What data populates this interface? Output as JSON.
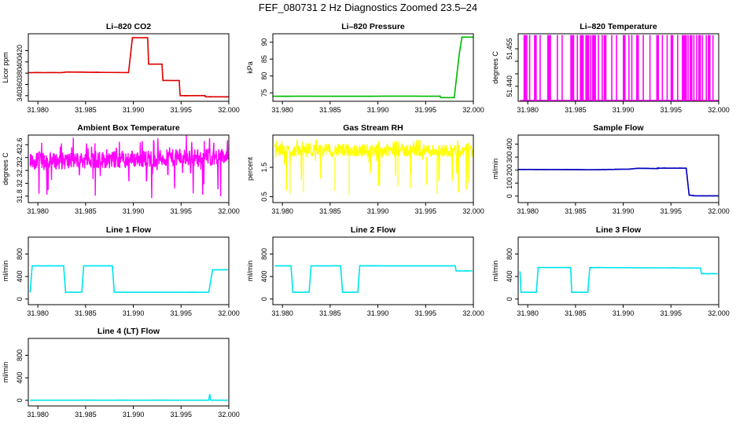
{
  "title": "FEF_080731  2 Hz Diagnostics Zoomed 23.5–24",
  "colors": {
    "red": "#e00000",
    "green": "#00bb00",
    "magenta": "#ff00ff",
    "yellow": "#ffff00",
    "blue": "#0000bb",
    "cyan": "#00e5ee"
  },
  "chart_data": [
    {
      "type": "line",
      "title": "Li–820 CO2",
      "ylabel": "Licor ppm",
      "color": "red",
      "xlim": [
        31.979,
        32.0
      ],
      "ylim": [
        330,
        450
      ],
      "xticks": [
        "31.980",
        "31.985",
        "31.990",
        "31.995",
        "32.000"
      ],
      "yticks": [
        340,
        360,
        380,
        400,
        420
      ],
      "series": [
        {
          "x": [
            31.979,
            31.9825,
            31.983,
            31.9895,
            31.9899,
            31.9915,
            31.9916,
            31.993,
            31.9931,
            31.9948,
            31.9949,
            31.9975,
            31.9976,
            32.0
          ],
          "y": [
            381,
            381,
            382,
            381,
            443,
            443,
            396,
            396,
            367,
            367,
            340,
            340,
            338,
            338
          ]
        }
      ]
    },
    {
      "type": "line",
      "title": "Li–820 Pressure",
      "ylabel": "kPa",
      "color": "green",
      "xlim": [
        31.979,
        32.0
      ],
      "ylim": [
        72.5,
        92.5
      ],
      "xticks": [
        "31.980",
        "31.985",
        "31.990",
        "31.995",
        "32.000"
      ],
      "yticks": [
        75,
        80,
        85,
        90
      ],
      "series": [
        {
          "x": [
            31.979,
            31.9965,
            31.9966,
            31.998,
            31.9985,
            31.9988,
            31.9995,
            32.0
          ],
          "y": [
            74,
            74,
            73.6,
            73.6,
            86,
            91.5,
            91.5,
            91.5
          ]
        }
      ]
    },
    {
      "type": "line",
      "title": "Li–820 Temperature",
      "ylabel": "degrees C",
      "color": "magenta",
      "xlim": [
        31.979,
        32.0
      ],
      "ylim": [
        51.434,
        51.461
      ],
      "xticks": [
        "31.980",
        "31.985",
        "31.990",
        "31.995",
        "32.000"
      ],
      "yticks": [
        51.44,
        51.445,
        51.45,
        51.455
      ],
      "ytick_labels": [
        "51.440",
        "",
        "",
        "51.455"
      ],
      "baseline": 51.4343,
      "spike_top": 51.4605,
      "spikes_x": [
        31.9797,
        31.9799,
        31.9802,
        31.9808,
        31.9813,
        31.9821,
        31.9823,
        31.9831,
        31.9836,
        31.9846,
        31.9848,
        31.9852,
        31.9856,
        31.9858,
        31.9861,
        31.9863,
        31.9866,
        31.9868,
        31.987,
        31.9874,
        31.9878,
        31.9881,
        31.9888,
        31.9893,
        31.9901,
        31.9906,
        31.9909,
        31.9915,
        31.9921,
        31.9928,
        31.9936,
        31.9941,
        31.9946,
        31.9951,
        31.9957,
        31.9962,
        31.9964,
        31.9966,
        31.9968,
        31.9971,
        31.9974,
        31.9977,
        31.998,
        31.9983,
        31.9987,
        31.999,
        31.9994
      ]
    },
    {
      "type": "line",
      "title": "Ambient Box Temperature",
      "ylabel": "degrees C",
      "color": "magenta",
      "xlim": [
        31.979,
        32.0
      ],
      "ylim": [
        31.7,
        32.75
      ],
      "xticks": [
        "31.980",
        "31.985",
        "31.990",
        "31.995",
        "32.000"
      ],
      "yticks": [
        31.8,
        32.0,
        32.2,
        32.4,
        32.6
      ],
      "band": {
        "lo": 32.2,
        "hi": 32.47,
        "min": 31.75,
        "max": 32.7,
        "drift_per_unit_x": 4.0
      }
    },
    {
      "type": "line",
      "title": "Gas Stream RH",
      "ylabel": "percent",
      "color": "yellow",
      "xlim": [
        31.979,
        32.0
      ],
      "ylim": [
        0.3,
        2.6
      ],
      "xticks": [
        "31.980",
        "31.985",
        "31.990",
        "31.995",
        "32.000"
      ],
      "yticks": [
        0.5,
        1.5
      ],
      "band": {
        "lo": 1.85,
        "hi": 2.3,
        "min": 0.5,
        "max": 2.45,
        "drift_per_unit_x": 0
      },
      "dips": [
        [
          31.9808,
          0.6
        ],
        [
          31.9822,
          0.65
        ],
        [
          31.9855,
          0.7
        ],
        [
          31.987,
          0.55
        ],
        [
          31.9921,
          0.85
        ],
        [
          31.9934,
          0.8
        ],
        [
          31.9951,
          0.9
        ],
        [
          31.9962,
          0.6
        ]
      ]
    },
    {
      "type": "line",
      "title": "Sample Flow",
      "ylabel": "ml/min",
      "color": "blue",
      "xlim": [
        31.979,
        32.0
      ],
      "ylim": [
        -50,
        470
      ],
      "xticks": [
        "31.980",
        "31.985",
        "31.990",
        "31.995",
        "32.000"
      ],
      "yticks": [
        0,
        100,
        200,
        300,
        400
      ],
      "series": [
        {
          "x": [
            31.979,
            31.9865,
            31.9905,
            31.9915,
            31.9935,
            31.9937,
            31.9966,
            31.9969,
            31.9975,
            32.0
          ],
          "y": [
            205,
            203,
            207,
            214,
            212,
            215,
            215,
            8,
            2,
            2
          ]
        }
      ]
    },
    {
      "type": "line",
      "title": "Line 1 Flow",
      "ylabel": "ml/min",
      "color": "cyan",
      "xlim": [
        31.979,
        32.0
      ],
      "ylim": [
        -100,
        1100
      ],
      "xticks": [
        "31.980",
        "31.985",
        "31.990",
        "31.995",
        "32.000"
      ],
      "yticks": [
        0,
        400,
        800
      ],
      "ytick_labels": [
        "0",
        "400",
        "800"
      ],
      "series": [
        {
          "x": [
            31.9792,
            31.9794,
            31.9827,
            31.9829,
            31.9846,
            31.9848,
            31.9878,
            31.988,
            31.9979,
            31.9983,
            31.9999
          ],
          "y": [
            120,
            590,
            590,
            120,
            120,
            590,
            590,
            120,
            120,
            520,
            520
          ]
        }
      ]
    },
    {
      "type": "line",
      "title": "Line 2 Flow",
      "ylabel": "ml/min",
      "color": "cyan",
      "xlim": [
        31.979,
        32.0
      ],
      "ylim": [
        -100,
        1100
      ],
      "xticks": [
        "31.980",
        "31.985",
        "31.990",
        "31.995",
        "32.000"
      ],
      "yticks": [
        0,
        400,
        800
      ],
      "ytick_labels": [
        "0",
        "400",
        "800"
      ],
      "series": [
        {
          "x": [
            31.9792,
            31.9809,
            31.9811,
            31.9828,
            31.983,
            31.9861,
            31.9863,
            31.9879,
            31.9881,
            31.9981,
            31.9982,
            31.9999
          ],
          "y": [
            590,
            590,
            120,
            120,
            590,
            590,
            120,
            120,
            590,
            590,
            500,
            500
          ]
        }
      ]
    },
    {
      "type": "line",
      "title": "Line 3 Flow",
      "ylabel": "ml/min",
      "color": "cyan",
      "xlim": [
        31.979,
        32.0
      ],
      "ylim": [
        -100,
        1100
      ],
      "xticks": [
        "31.980",
        "31.985",
        "31.990",
        "31.995",
        "32.000"
      ],
      "yticks": [
        0,
        400,
        800
      ],
      "ytick_labels": [
        "0",
        "400",
        "800"
      ],
      "series": [
        {
          "x": [
            31.9792,
            31.9793,
            31.9794,
            31.9809,
            31.9811,
            31.9845,
            31.9846,
            31.9863,
            31.9865,
            31.9981,
            31.9982,
            31.9999
          ],
          "y": [
            490,
            120,
            120,
            120,
            560,
            560,
            120,
            120,
            560,
            550,
            450,
            450
          ]
        }
      ]
    },
    {
      "type": "line",
      "title": "Line 4 (LT) Flow",
      "ylabel": "ml/min",
      "color": "cyan",
      "xlim": [
        31.979,
        32.0
      ],
      "ylim": [
        -100,
        1100
      ],
      "xticks": [
        "31.980",
        "31.985",
        "31.990",
        "31.995",
        "32.000"
      ],
      "yticks": [
        0,
        400,
        800
      ],
      "ytick_labels": [
        "0",
        "400",
        "800"
      ],
      "series": [
        {
          "x": [
            31.9792,
            31.9979,
            31.998,
            31.9981,
            31.9999
          ],
          "y": [
            2,
            2,
            110,
            2,
            2
          ]
        }
      ]
    }
  ]
}
